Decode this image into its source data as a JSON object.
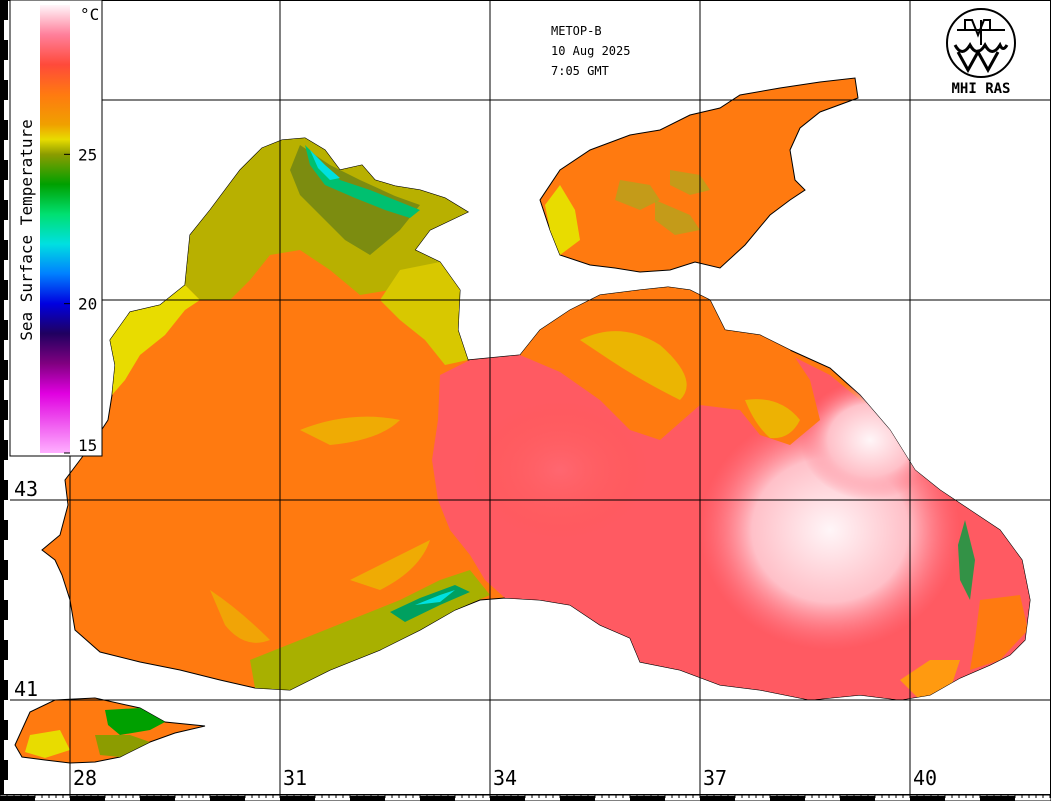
{
  "satellite": "METOP-B",
  "date": "10 Aug 2025",
  "time": "7:05 GMT",
  "logo_text": "MHI RAS",
  "colorbar": {
    "title": "Sea Surface Temperature",
    "unit": "°C",
    "ticks": [
      {
        "value": 25,
        "label": "25"
      },
      {
        "value": 20,
        "label": "20"
      },
      {
        "value": 15,
        "label": "15"
      }
    ],
    "range": [
      15,
      30
    ],
    "stops": [
      {
        "value": 30,
        "color": "#fff6fa"
      },
      {
        "value": 29,
        "color": "#ff7f9a"
      },
      {
        "value": 28,
        "color": "#ff4a3a"
      },
      {
        "value": 27,
        "color": "#ff7a10"
      },
      {
        "value": 26,
        "color": "#f0a000"
      },
      {
        "value": 25.5,
        "color": "#e8dc00"
      },
      {
        "value": 25,
        "color": "#8c9c00"
      },
      {
        "value": 24,
        "color": "#00a000"
      },
      {
        "value": 23,
        "color": "#00e070"
      },
      {
        "value": 22,
        "color": "#00e0e0"
      },
      {
        "value": 21,
        "color": "#0080ff"
      },
      {
        "value": 20,
        "color": "#0000e0"
      },
      {
        "value": 19,
        "color": "#200060"
      },
      {
        "value": 18,
        "color": "#800080"
      },
      {
        "value": 17,
        "color": "#e000e0"
      },
      {
        "value": 15,
        "color": "#ffb0ff"
      }
    ]
  },
  "longitude_labels": [
    "28",
    "31",
    "34",
    "37",
    "40"
  ],
  "latitude_labels": [
    "43",
    "41"
  ],
  "colors": {
    "land": "#ffffff",
    "coast": "#000000",
    "grid": "#000000",
    "sst_hot": "#ff4a3a",
    "sst_very_hot": "#ffe6ea",
    "sst_warm": "#ff7a10",
    "sst_mild": "#e8dc00",
    "sst_cool": "#8c9c00",
    "sst_cold": "#00a000",
    "sst_coldest": "#00e0e0"
  }
}
